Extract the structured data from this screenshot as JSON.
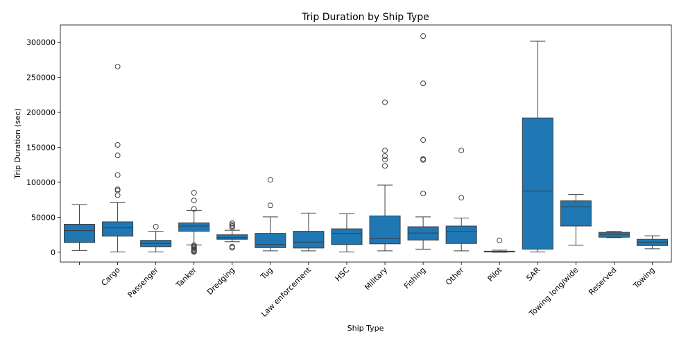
{
  "chart_data": {
    "type": "box",
    "title": "Trip Duration by Ship Type",
    "xlabel": "Ship Type",
    "ylabel": "Trip Duration (sec)",
    "ylim": [
      -14000,
      325000
    ],
    "yticks": [
      0,
      50000,
      100000,
      150000,
      200000,
      250000,
      300000
    ],
    "ytick_labels": [
      "0",
      "50000",
      "100000",
      "150000",
      "200000",
      "250000",
      "300000"
    ],
    "box_color": "#1f77b4",
    "categories": [
      "",
      "Cargo",
      "Passenger",
      "Tanker",
      "Dredging",
      "Tug",
      "Law enforcement",
      "HSC",
      "Military",
      "Fishing",
      "Other",
      "Pilot",
      "SAR",
      "Towing long/wide",
      "Reserved",
      "Towing"
    ],
    "boxes": [
      {
        "name": "",
        "whislo": 2500,
        "q1": 14000,
        "med": 31000,
        "q3": 40000,
        "whishi": 68000,
        "fliers": []
      },
      {
        "name": "Cargo",
        "whislo": 500,
        "q1": 23000,
        "med": 35000,
        "q3": 43500,
        "whishi": 71000,
        "fliers": [
          265500,
          153500,
          138500,
          110500,
          90000,
          88500,
          81500
        ]
      },
      {
        "name": "Passenger",
        "whislo": 500,
        "q1": 8000,
        "med": 12500,
        "q3": 17000,
        "whishi": 30000,
        "fliers": [
          36500
        ]
      },
      {
        "name": "Tanker",
        "whislo": 10500,
        "q1": 30000,
        "med": 37500,
        "q3": 42000,
        "whishi": 60000,
        "fliers": [
          85000,
          74000,
          62000,
          10000,
          8500,
          7000,
          5500,
          4000,
          2500,
          1500,
          500
        ]
      },
      {
        "name": "Dredging",
        "whislo": 15000,
        "q1": 18500,
        "med": 21000,
        "q3": 25000,
        "whishi": 31500,
        "fliers": [
          41500,
          39500,
          37500,
          35500,
          8000,
          6500
        ]
      },
      {
        "name": "Tug",
        "whislo": 2000,
        "q1": 6500,
        "med": 11000,
        "q3": 27000,
        "whishi": 50500,
        "fliers": [
          103500,
          67000
        ]
      },
      {
        "name": "Law enforcement",
        "whislo": 2000,
        "q1": 6000,
        "med": 14500,
        "q3": 30000,
        "whishi": 56000,
        "fliers": []
      },
      {
        "name": "HSC",
        "whislo": 500,
        "q1": 11000,
        "med": 27000,
        "q3": 33500,
        "whishi": 55000,
        "fliers": []
      },
      {
        "name": "Military",
        "whislo": 2000,
        "q1": 12000,
        "med": 19500,
        "q3": 52000,
        "whishi": 96000,
        "fliers": [
          214500,
          145500,
          137500,
          132500,
          123500
        ]
      },
      {
        "name": "Fishing",
        "whislo": 4500,
        "q1": 17500,
        "med": 27500,
        "q3": 36500,
        "whishi": 50500,
        "fliers": [
          309000,
          241500,
          160500,
          133500,
          132000,
          84000
        ]
      },
      {
        "name": "Other",
        "whislo": 2000,
        "q1": 12500,
        "med": 29500,
        "q3": 37500,
        "whishi": 49000,
        "fliers": [
          145500,
          78000
        ]
      },
      {
        "name": "Pilot",
        "whislo": 0,
        "q1": 500,
        "med": 1000,
        "q3": 1500,
        "whishi": 3000,
        "fliers": [
          17000
        ]
      },
      {
        "name": "SAR",
        "whislo": 500,
        "q1": 4500,
        "med": 87500,
        "q3": 192000,
        "whishi": 302000,
        "fliers": []
      },
      {
        "name": "Towing long/wide",
        "whislo": 10000,
        "q1": 37500,
        "med": 65000,
        "q3": 73500,
        "whishi": 82500,
        "fliers": []
      },
      {
        "name": "Reserved",
        "whislo": 21000,
        "q1": 21500,
        "med": 25500,
        "q3": 28500,
        "whishi": 30000,
        "fliers": []
      },
      {
        "name": "Towing",
        "whislo": 5000,
        "q1": 9500,
        "med": 14500,
        "q3": 18500,
        "whishi": 23500,
        "fliers": []
      }
    ]
  }
}
